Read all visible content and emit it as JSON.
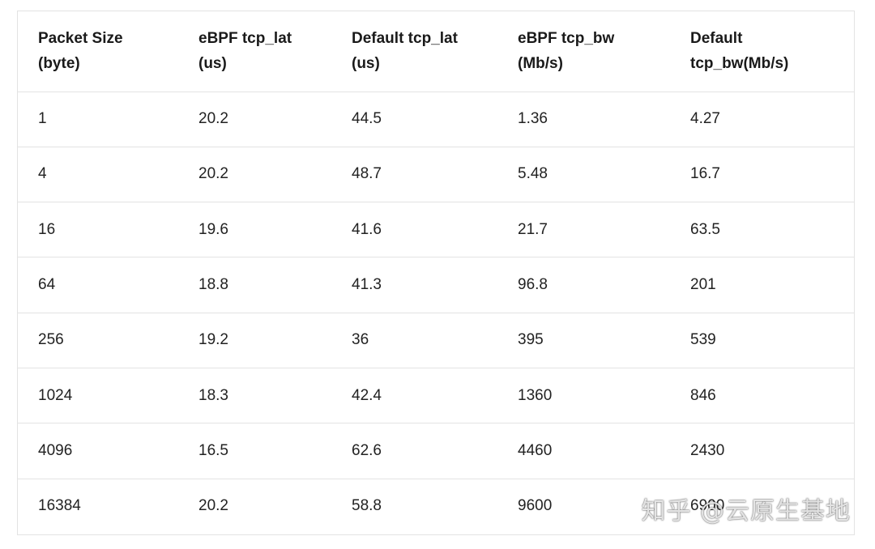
{
  "table": {
    "headers": [
      [
        "Packet Size",
        "(byte)"
      ],
      [
        "eBPF tcp_lat",
        "(us)"
      ],
      [
        "Default tcp_lat",
        "(us)"
      ],
      [
        "eBPF tcp_bw",
        "(Mb/s)"
      ],
      [
        "Default",
        "tcp_bw(Mb/s)"
      ]
    ],
    "rows": [
      [
        "1",
        "20.2",
        "44.5",
        "1.36",
        "4.27"
      ],
      [
        "4",
        "20.2",
        "48.7",
        "5.48",
        "16.7"
      ],
      [
        "16",
        "19.6",
        "41.6",
        "21.7",
        "63.5"
      ],
      [
        "64",
        "18.8",
        "41.3",
        "96.8",
        "201"
      ],
      [
        "256",
        "19.2",
        "36",
        "395",
        "539"
      ],
      [
        "1024",
        "18.3",
        "42.4",
        "1360",
        "846"
      ],
      [
        "4096",
        "16.5",
        "62.6",
        "4460",
        "2430"
      ],
      [
        "16384",
        "20.2",
        "58.8",
        "9600",
        "6900"
      ]
    ]
  },
  "watermark": "知乎 @云原生基地"
}
